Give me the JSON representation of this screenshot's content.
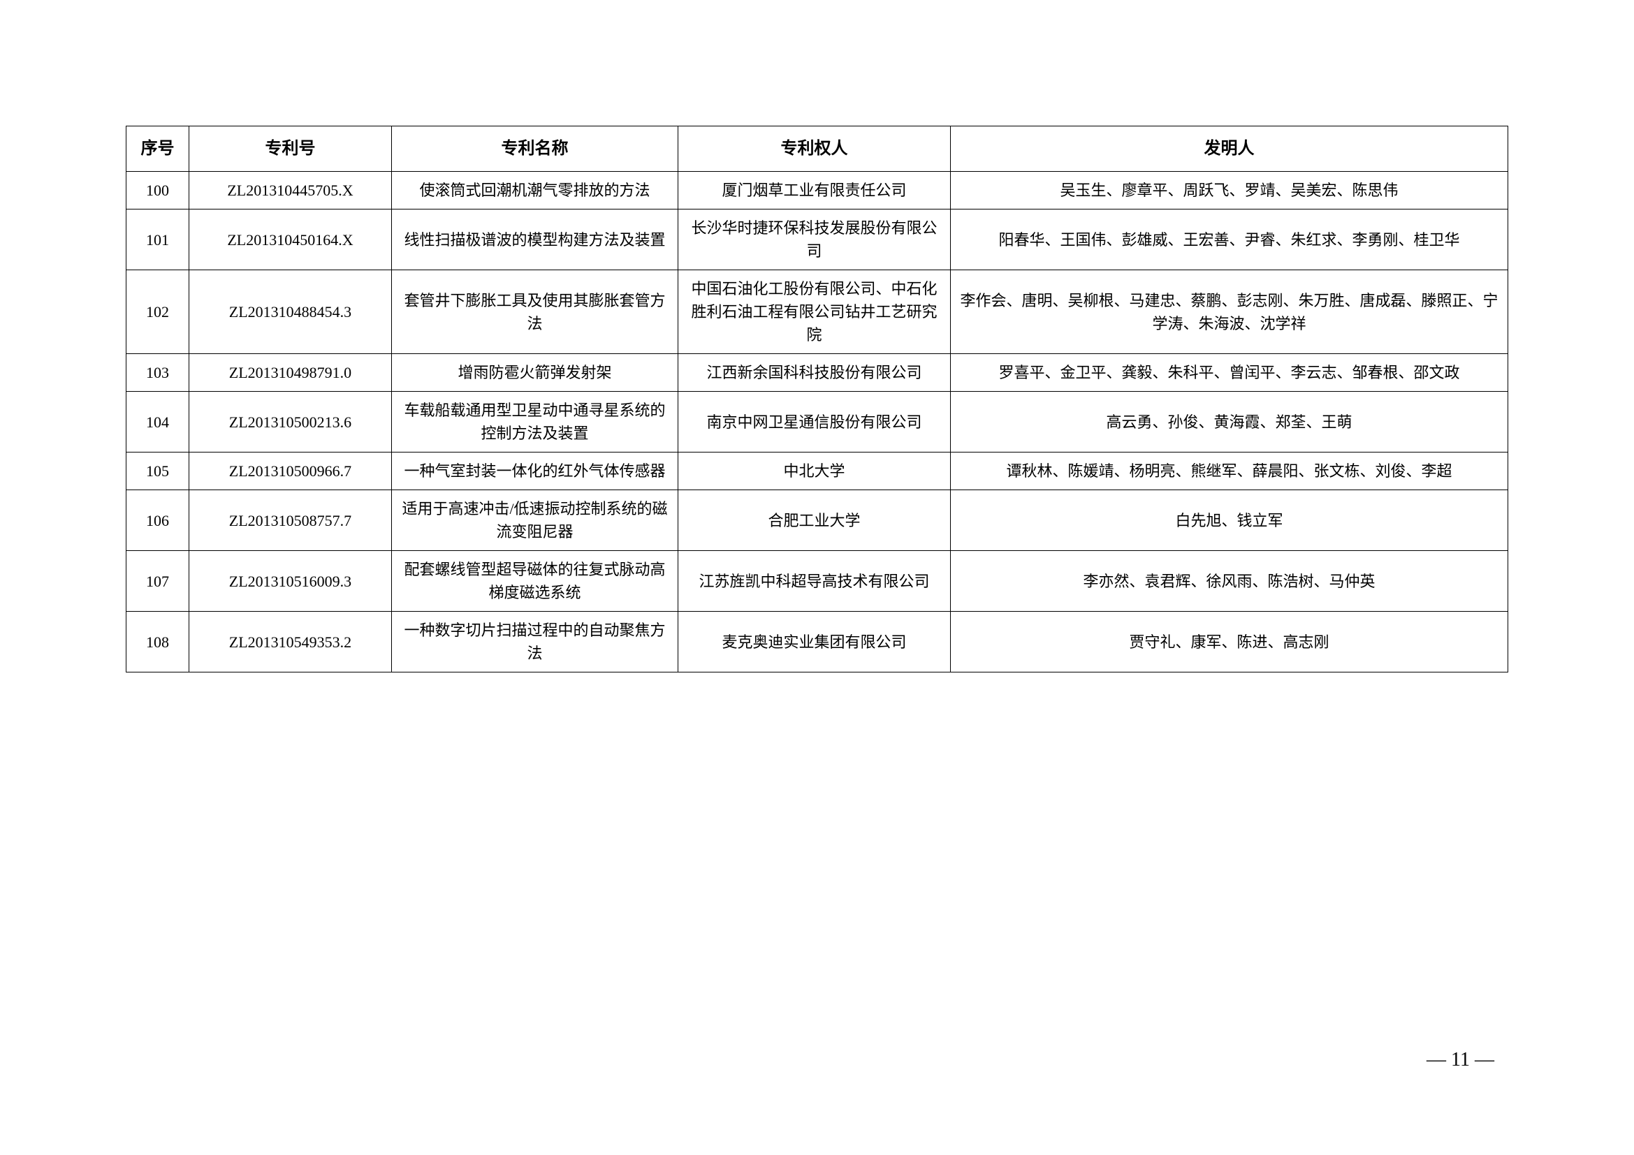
{
  "table": {
    "headers": {
      "seq": "序号",
      "patentNo": "专利号",
      "patentName": "专利名称",
      "holder": "专利权人",
      "inventor": "发明人"
    },
    "rows": [
      {
        "seq": "100",
        "patentNo": "ZL201310445705.X",
        "patentName": "使滚筒式回潮机潮气零排放的方法",
        "holder": "厦门烟草工业有限责任公司",
        "inventor": "吴玉生、廖章平、周跃飞、罗靖、吴美宏、陈思伟"
      },
      {
        "seq": "101",
        "patentNo": "ZL201310450164.X",
        "patentName": "线性扫描极谱波的模型构建方法及装置",
        "holder": "长沙华时捷环保科技发展股份有限公司",
        "inventor": "阳春华、王国伟、彭雄威、王宏善、尹睿、朱红求、李勇刚、桂卫华"
      },
      {
        "seq": "102",
        "patentNo": "ZL201310488454.3",
        "patentName": "套管井下膨胀工具及使用其膨胀套管方法",
        "holder": "中国石油化工股份有限公司、中石化胜利石油工程有限公司钻井工艺研究院",
        "inventor": "李作会、唐明、吴柳根、马建忠、蔡鹏、彭志刚、朱万胜、唐成磊、滕照正、宁学涛、朱海波、沈学祥"
      },
      {
        "seq": "103",
        "patentNo": "ZL201310498791.0",
        "patentName": "增雨防雹火箭弹发射架",
        "holder": "江西新余国科科技股份有限公司",
        "inventor": "罗喜平、金卫平、龚毅、朱科平、曾闰平、李云志、邹春根、邵文政"
      },
      {
        "seq": "104",
        "patentNo": "ZL201310500213.6",
        "patentName": "车载船载通用型卫星动中通寻星系统的控制方法及装置",
        "holder": "南京中网卫星通信股份有限公司",
        "inventor": "高云勇、孙俊、黄海霞、郑荃、王萌"
      },
      {
        "seq": "105",
        "patentNo": "ZL201310500966.7",
        "patentName": "一种气室封装一体化的红外气体传感器",
        "holder": "中北大学",
        "inventor": "谭秋林、陈媛靖、杨明亮、熊继军、薛晨阳、张文栋、刘俊、李超"
      },
      {
        "seq": "106",
        "patentNo": "ZL201310508757.7",
        "patentName": "适用于高速冲击/低速振动控制系统的磁流变阻尼器",
        "holder": "合肥工业大学",
        "inventor": "白先旭、钱立军"
      },
      {
        "seq": "107",
        "patentNo": "ZL201310516009.3",
        "patentName": "配套螺线管型超导磁体的往复式脉动高梯度磁选系统",
        "holder": "江苏旌凯中科超导高技术有限公司",
        "inventor": "李亦然、袁君辉、徐风雨、陈浩树、马仲英"
      },
      {
        "seq": "108",
        "patentNo": "ZL201310549353.2",
        "patentName": "一种数字切片扫描过程中的自动聚焦方法",
        "holder": "麦克奥迪实业集团有限公司",
        "inventor": "贾守礼、康军、陈进、高志刚"
      }
    ]
  },
  "pageNumber": "— 11 —"
}
